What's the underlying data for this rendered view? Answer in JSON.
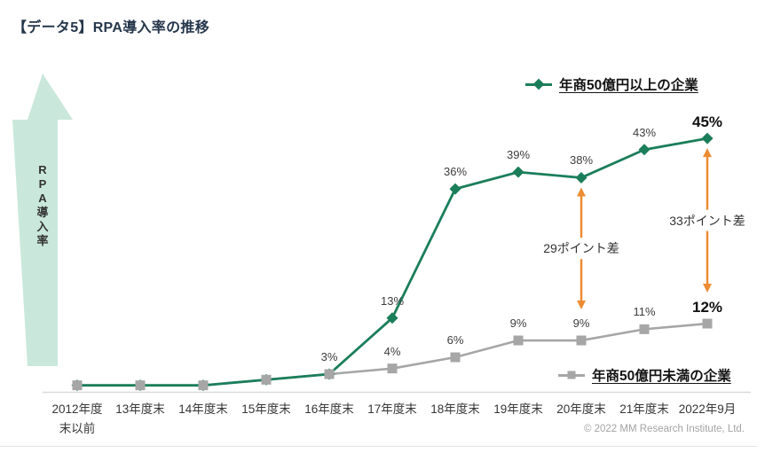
{
  "title": "【データ5】RPA導入率の推移",
  "y_axis_label": "RPA導入率",
  "copyright": "© 2022 MM Research Institute, Ltd.",
  "colors": {
    "series_large": "#1B7E5A",
    "series_small": "#A6A6A6",
    "annotation_arrow": "#ED8C32",
    "side_arrow_fill": "#C9E8DB",
    "axis_line": "#D9D9D9",
    "title_text": "#26374B"
  },
  "legend": {
    "large": {
      "label": "年商50億円以上の企業",
      "marker": "diamond"
    },
    "small": {
      "label": "年商50億円未満の企業",
      "marker": "square"
    }
  },
  "chart_data": {
    "type": "line",
    "title": "【データ5】RPA導入率の推移",
    "ylabel": "RPA導入率",
    "ylim": [
      0,
      50
    ],
    "grid": false,
    "legend_position": {
      "large": "top-right",
      "small": "bottom-right"
    },
    "categories": [
      "2012年度末以前",
      "13年度末",
      "14年度末",
      "15年度末",
      "16年度末",
      "17年度末",
      "18年度末",
      "19年度末",
      "20年度末",
      "21年度末",
      "2022年9月"
    ],
    "categories_display": [
      "2012年度\n末以前",
      "13年度末",
      "14年度末",
      "15年度末",
      "16年度末",
      "17年度末",
      "18年度末",
      "19年度末",
      "20年度末",
      "21年度末",
      "2022年9月"
    ],
    "series": [
      {
        "name": "年商50億円以上の企業",
        "marker": "diamond",
        "color": "#1B7E5A",
        "values": [
          1,
          1,
          1,
          2,
          3,
          13,
          36,
          39,
          38,
          43,
          45
        ],
        "labels": [
          "",
          "",
          "",
          "",
          "3%",
          "13%",
          "36%",
          "39%",
          "38%",
          "43%",
          "45%"
        ]
      },
      {
        "name": "年商50億円未満の企業",
        "marker": "square",
        "color": "#A6A6A6",
        "values": [
          1,
          1,
          1,
          2,
          3,
          4,
          6,
          9,
          9,
          11,
          12
        ],
        "labels": [
          "",
          "",
          "",
          "",
          "",
          "4%",
          "6%",
          "9%",
          "9%",
          "11%",
          "12%"
        ]
      }
    ],
    "annotations": [
      {
        "category_index": 8,
        "label": "29ポイント差",
        "from_value": 38,
        "to_value": 9,
        "difference_points": 29
      },
      {
        "category_index": 10,
        "label": "33ポイント差",
        "from_value": 45,
        "to_value": 12,
        "difference_points": 33
      }
    ]
  }
}
